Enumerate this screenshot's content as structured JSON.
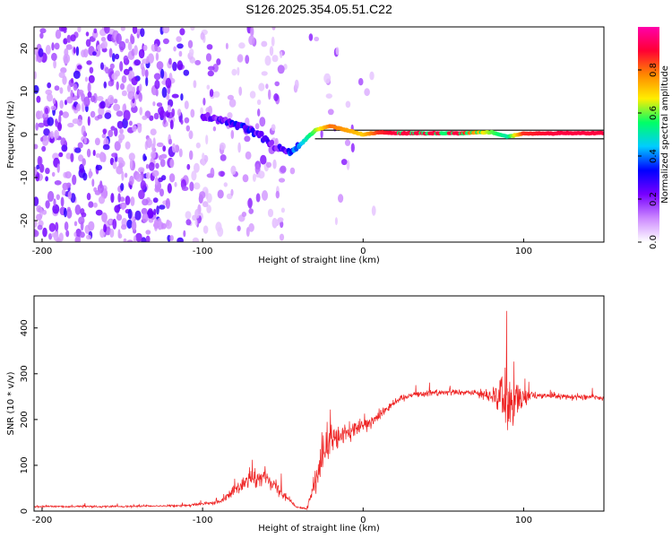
{
  "figure_title": "S126.2025.354.05.51.C22",
  "chart_data": [
    {
      "type": "heatmap",
      "title": "S126.2025.354.05.51.C22",
      "xlabel": "Height of straight line (km)",
      "ylabel": "Frequency (Hz)",
      "xlim": [
        -205,
        150
      ],
      "ylim": [
        -25,
        25
      ],
      "xticks": [
        -200,
        -100,
        0,
        100
      ],
      "yticks": [
        -20,
        -10,
        0,
        10,
        20
      ],
      "colorbar": {
        "label": "Normalized spectral amplitude",
        "ticks": [
          "0.0",
          "0.2",
          "0.4",
          "0.6",
          "0.8"
        ],
        "range": [
          0,
          1
        ],
        "colors": [
          "#ffffff",
          "#cc88ff",
          "#7700ff",
          "#0000ff",
          "#00ccff",
          "#00ff66",
          "#ffee00",
          "#ff8800",
          "#ff0033",
          "#ff00aa"
        ]
      },
      "signal_track": {
        "x": [
          -95,
          -85,
          -75,
          -65,
          -55,
          -45,
          -38,
          -30,
          -20,
          -10,
          0,
          10,
          20,
          40,
          60,
          80,
          90,
          100,
          120,
          150
        ],
        "freq": [
          4,
          3,
          2,
          0,
          -3,
          -4,
          -2,
          1,
          2,
          1,
          0,
          0.5,
          0.3,
          0.3,
          0.3,
          0.5,
          -0.5,
          0.2,
          0.3,
          0.3
        ],
        "amplitude": [
          0.2,
          0.25,
          0.3,
          0.25,
          0.2,
          0.3,
          0.45,
          0.6,
          0.8,
          0.75,
          0.7,
          0.85,
          0.9,
          0.9,
          0.9,
          0.6,
          0.5,
          0.85,
          0.9,
          0.9
        ]
      },
      "reference_lines": [
        -1,
        1
      ]
    },
    {
      "type": "line",
      "xlabel": "Height of straight line (km)",
      "ylabel": "SNR (10 * v/v)",
      "xlim": [
        -205,
        150
      ],
      "ylim": [
        0,
        470
      ],
      "xticks": [
        -200,
        -100,
        0,
        100
      ],
      "yticks": [
        0,
        100,
        200,
        300,
        400
      ],
      "color": "#ee2222",
      "envelope_x": [
        -205,
        -150,
        -110,
        -90,
        -80,
        -70,
        -60,
        -50,
        -42,
        -35,
        -30,
        -25,
        -20,
        -15,
        -10,
        -5,
        0,
        10,
        20,
        30,
        50,
        70,
        80,
        85,
        90,
        95,
        100,
        105,
        110,
        130,
        150
      ],
      "envelope_mean": [
        10,
        10,
        12,
        20,
        45,
        70,
        75,
        40,
        10,
        5,
        60,
        120,
        150,
        160,
        170,
        180,
        185,
        210,
        240,
        255,
        260,
        258,
        255,
        250,
        230,
        240,
        250,
        255,
        252,
        250,
        248
      ],
      "envelope_spread": [
        5,
        5,
        6,
        10,
        30,
        45,
        40,
        25,
        5,
        5,
        60,
        110,
        80,
        75,
        60,
        45,
        40,
        30,
        20,
        15,
        15,
        15,
        50,
        110,
        180,
        130,
        50,
        20,
        15,
        15,
        15
      ]
    }
  ]
}
